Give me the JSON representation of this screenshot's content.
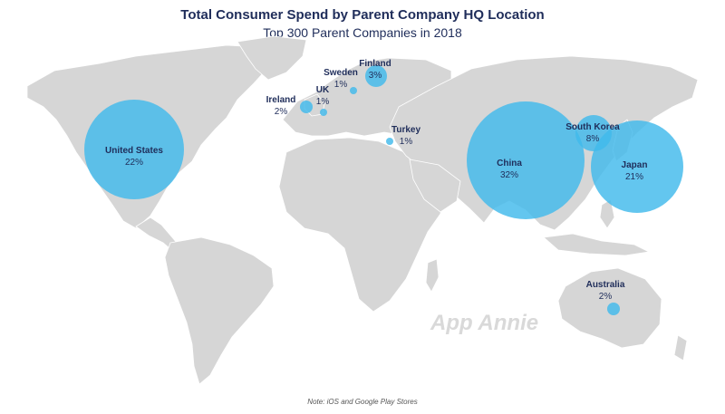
{
  "title": "Total Consumer Spend by Parent Company HQ Location",
  "subtitle": "Top 300 Parent Companies in 2018",
  "note": "Note: iOS and Google Play Stores",
  "watermark": "App Annie",
  "colors": {
    "land": "#d6d6d6",
    "bubble": "#41b9ec",
    "text": "#1f2d5a"
  },
  "locations": [
    {
      "name": "United States",
      "share": "22%",
      "value": 22
    },
    {
      "name": "China",
      "share": "32%",
      "value": 32
    },
    {
      "name": "Japan",
      "share": "21%",
      "value": 21
    },
    {
      "name": "South Korea",
      "share": "8%",
      "value": 8
    },
    {
      "name": "Finland",
      "share": "3%",
      "value": 3
    },
    {
      "name": "Ireland",
      "share": "2%",
      "value": 2
    },
    {
      "name": "Australia",
      "share": "2%",
      "value": 2
    },
    {
      "name": "UK",
      "share": "1%",
      "value": 1
    },
    {
      "name": "Sweden",
      "share": "1%",
      "value": 1
    },
    {
      "name": "Turkey",
      "share": "1%",
      "value": 1
    }
  ]
}
